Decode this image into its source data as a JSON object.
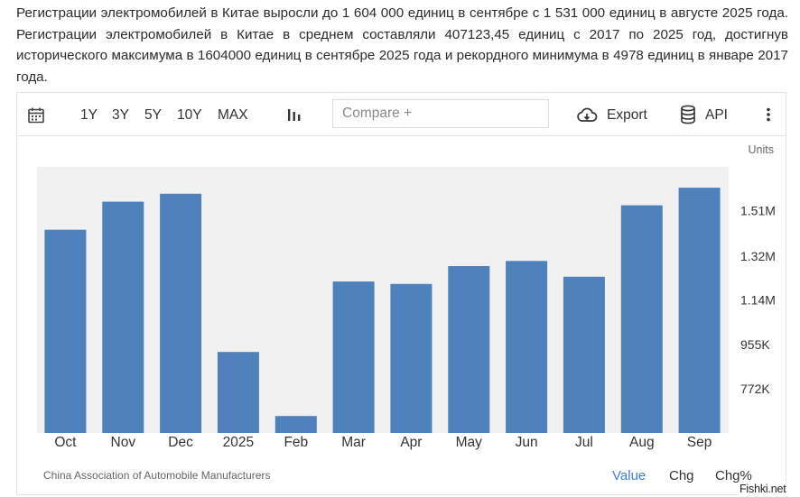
{
  "description": "Регистрации электромобилей в Китае выросли до 1 604 000 единиц в сентябре с 1 531 000 единиц в августе 2025 года. Регистрации электромобилей в Китае в среднем составляли 407123,45 единиц с 2017 по 2025 год, достигнув исторического максимума в 1604000 единиц в сентябре 2025 года и рекордного минимума в 4978 единиц в январе 2017 года.",
  "toolbar": {
    "calendar_icon": "calendar-icon",
    "ranges": [
      "1Y",
      "3Y",
      "5Y",
      "10Y",
      "MAX"
    ],
    "chart_type_icon": "bar-chart-icon",
    "compare_placeholder": "Compare +",
    "export_label": "Export",
    "api_label": "API",
    "more_icon": "kebab-menu-icon"
  },
  "chart_data": {
    "type": "bar",
    "units_label": "Units",
    "categories": [
      "Oct",
      "Nov",
      "Dec",
      "2025",
      "Feb",
      "Mar",
      "Apr",
      "May",
      "Jun",
      "Jul",
      "Aug",
      "Sep"
    ],
    "values": [
      1430000,
      1546000,
      1579000,
      925000,
      660000,
      1216000,
      1206000,
      1280000,
      1301000,
      1236000,
      1531000,
      1604000
    ],
    "y_ticks": [
      {
        "value": 772000,
        "label": "772K"
      },
      {
        "value": 955000,
        "label": "955K"
      },
      {
        "value": 1140000,
        "label": "1.14M"
      },
      {
        "value": 1320000,
        "label": "1.32M"
      },
      {
        "value": 1510000,
        "label": "1.51M"
      }
    ],
    "ylim": [
      590000,
      1690000
    ],
    "grid": false,
    "bar_color": "#4f81bd",
    "source": "China Association of Automobile Manufacturers"
  },
  "view_modes": {
    "items": [
      "Value",
      "Chg",
      "Chg%"
    ],
    "active": "Value"
  },
  "watermark": "Fishki.net",
  "colors": {
    "bar": "#4f81bd",
    "plot_background": "#f1f1f1",
    "active_mode": "#3b7dd8"
  }
}
